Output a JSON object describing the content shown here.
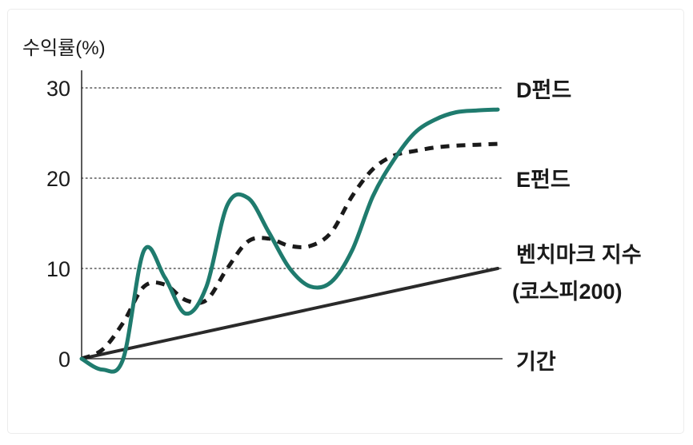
{
  "chart_data": {
    "type": "line",
    "ylabel": "수익률(%)",
    "xlabel": "기간",
    "yticks": [
      "0",
      "10",
      "20",
      "30"
    ],
    "ylim": [
      0,
      30
    ],
    "grid": "dotted horizontal lines at 10, 20, 30",
    "series": [
      {
        "name": "D펀드",
        "style": "solid",
        "color": "#1f7b6e",
        "x": [
          0,
          1,
          2,
          3,
          4,
          5,
          6,
          7,
          8,
          9,
          10,
          11,
          12,
          13,
          14,
          15,
          16,
          17,
          18,
          19,
          20
        ],
        "values": [
          0,
          -1.2,
          0,
          12,
          9,
          5,
          8,
          17,
          17.8,
          14,
          10,
          8,
          8.5,
          12,
          18,
          22,
          25,
          26.5,
          27.3,
          27.5,
          27.6
        ]
      },
      {
        "name": "E펀드",
        "style": "dashed",
        "color": "#1a1a1a",
        "x": [
          0,
          1,
          2,
          3,
          4,
          5,
          6,
          7,
          8,
          9,
          10,
          11,
          12,
          13,
          14,
          15,
          16,
          17,
          18,
          19,
          20
        ],
        "values": [
          0,
          1,
          4,
          8,
          8.2,
          6.5,
          6.5,
          10,
          13,
          13.3,
          12.5,
          12.5,
          14,
          18,
          21,
          22.5,
          23,
          23.4,
          23.6,
          23.7,
          23.8
        ]
      },
      {
        "name": "벤치마크 지수 (코스피200)",
        "style": "solid",
        "color": "#2a2a2a",
        "x": [
          0,
          20
        ],
        "values": [
          0,
          10
        ]
      }
    ],
    "labels": {
      "d_fund": "D펀드",
      "e_fund": "E펀드",
      "benchmark_line1": "벤치마크 지수",
      "benchmark_line2": "(코스피200)",
      "period": "기간"
    }
  }
}
